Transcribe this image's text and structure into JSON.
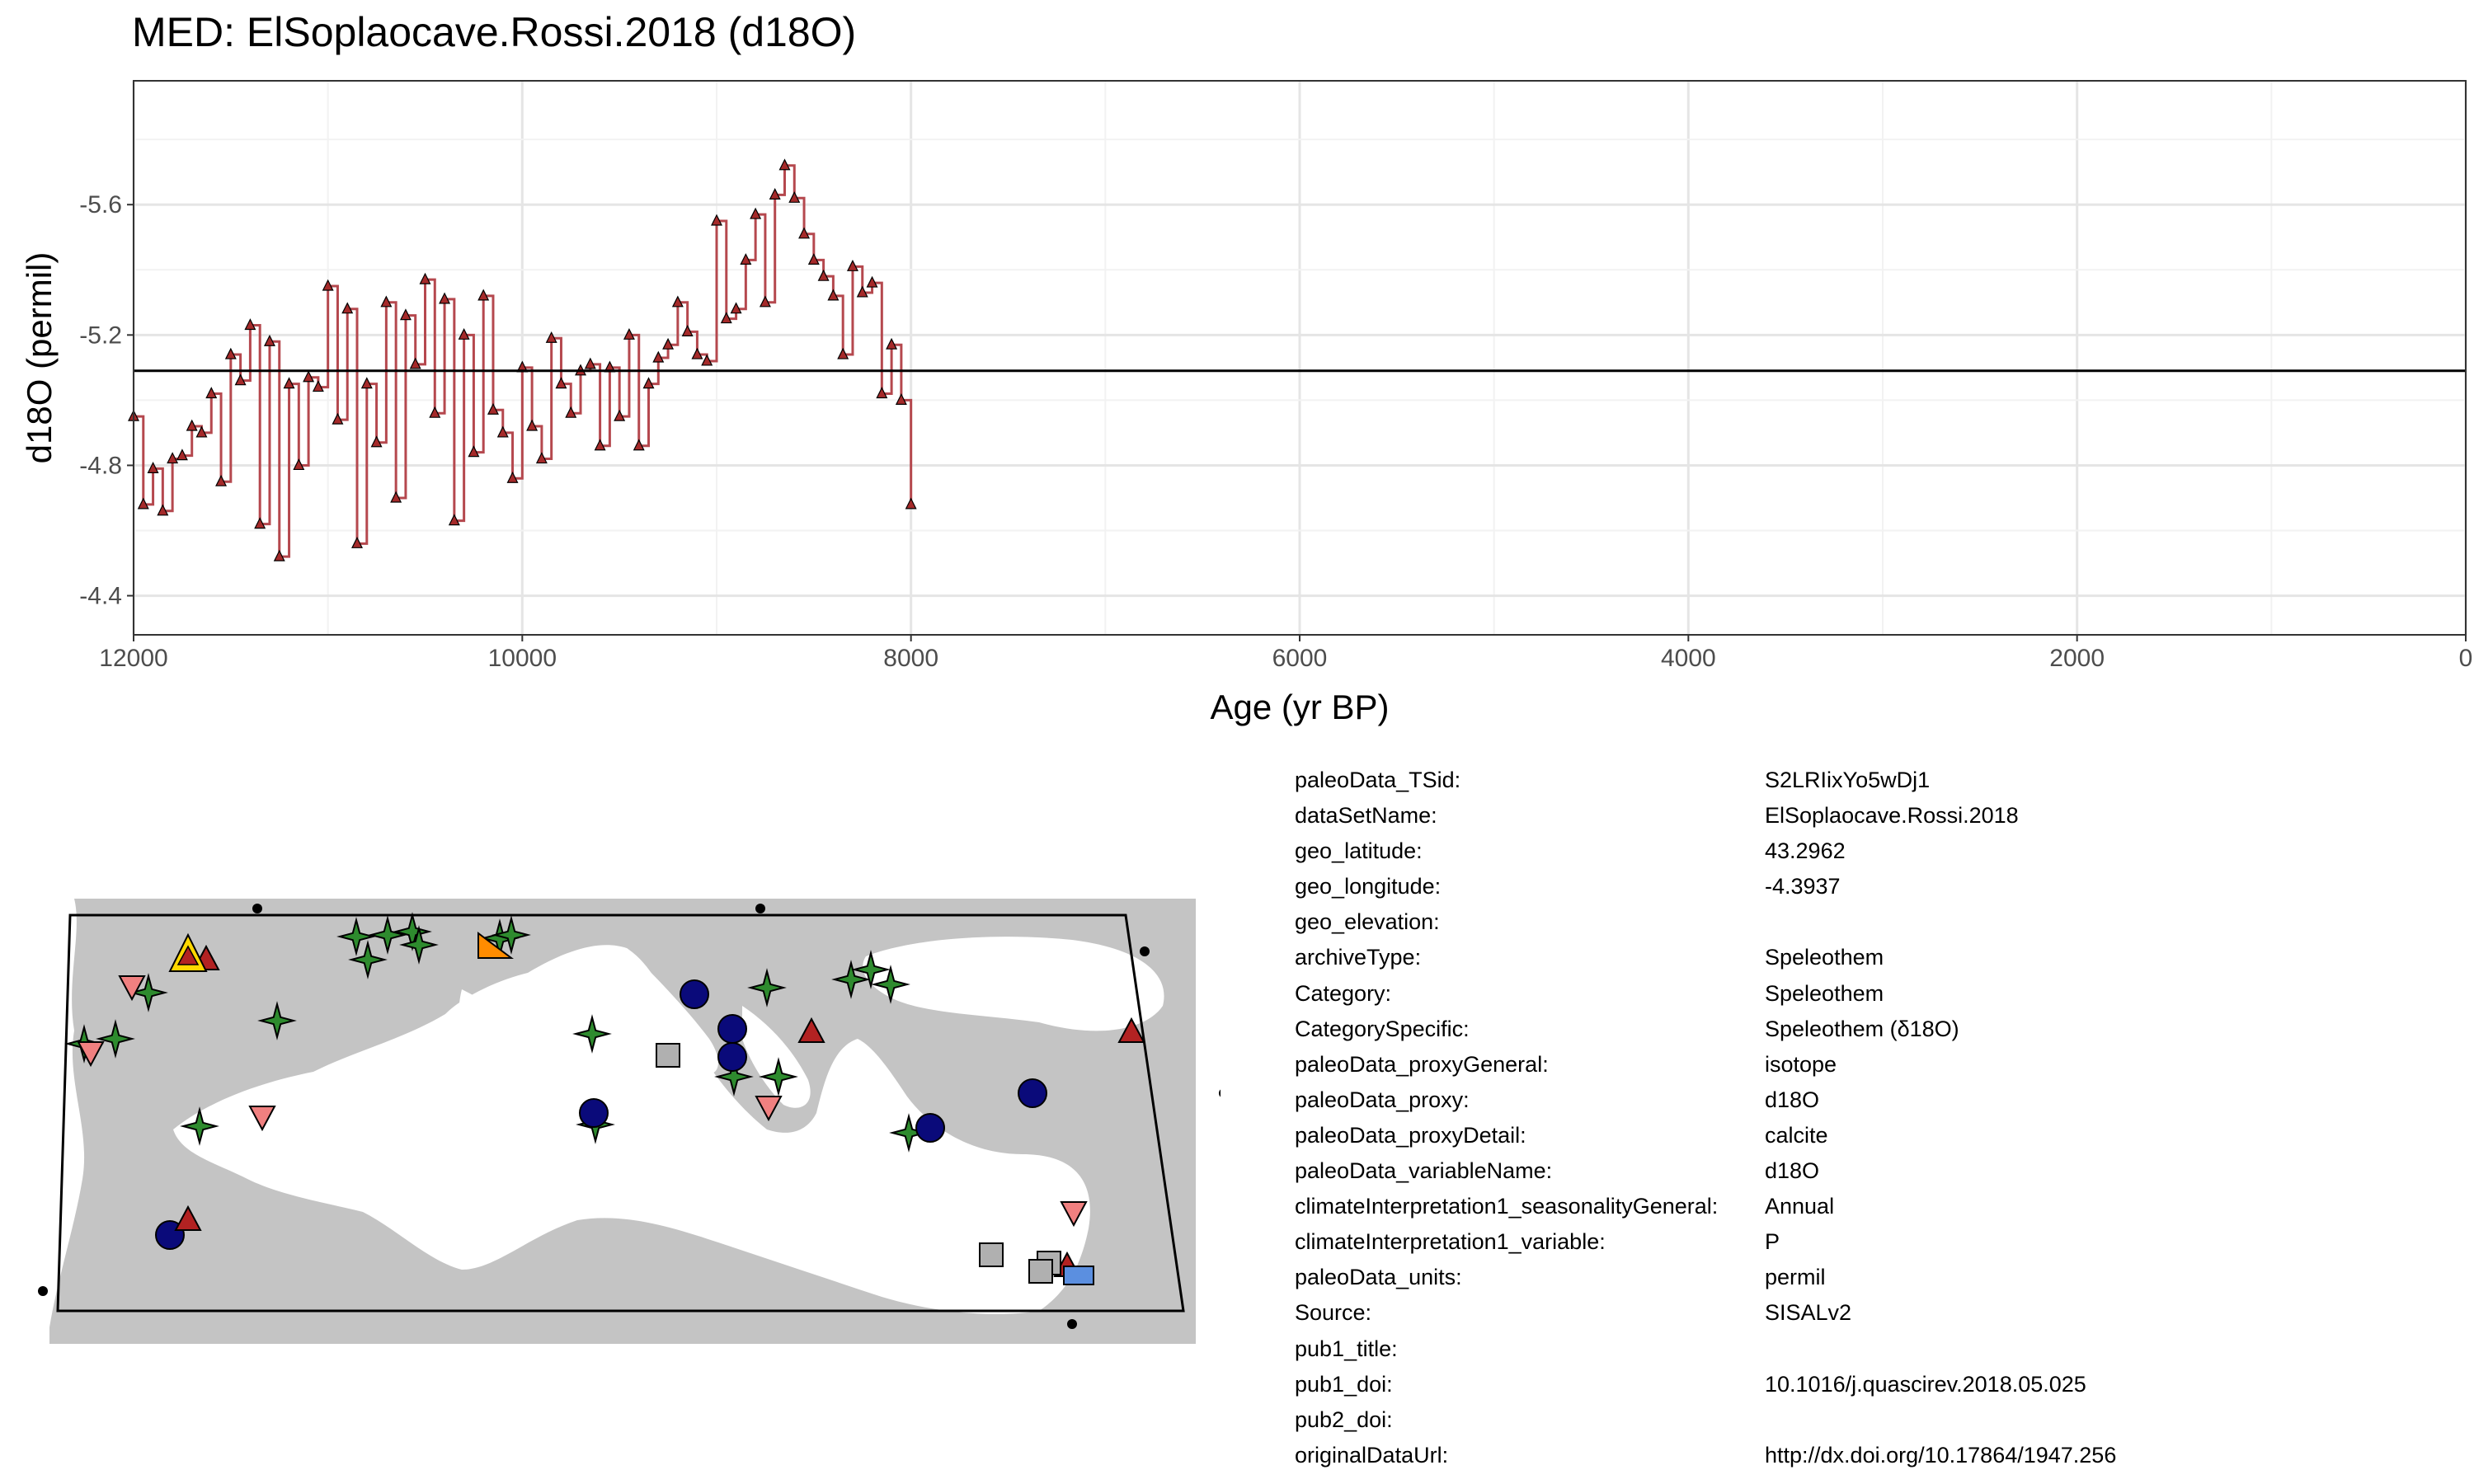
{
  "chart_data": {
    "type": "line",
    "title": "MED: ElSoplaocave.Rossi.2018 (d18O)",
    "xlabel": "Age (yr BP)",
    "ylabel": "d18O (permil)",
    "xlim": [
      12000,
      0
    ],
    "ylim": [
      -4.28,
      -5.98
    ],
    "y_axis_reversed": true,
    "x_ticks": [
      12000,
      10000,
      8000,
      6000,
      4000,
      2000,
      0
    ],
    "y_ticks": [
      -5.6,
      -5.2,
      -4.8,
      -4.4
    ],
    "reference_line_y": -5.09,
    "grid": true,
    "series": [
      {
        "color": "#A52A2A",
        "line_color": "#B5484E",
        "marker": "triangle",
        "x": [
          12000,
          11950,
          11900,
          11850,
          11800,
          11750,
          11700,
          11650,
          11600,
          11550,
          11500,
          11450,
          11400,
          11350,
          11300,
          11250,
          11200,
          11150,
          11100,
          11050,
          11000,
          10950,
          10900,
          10850,
          10800,
          10750,
          10700,
          10650,
          10600,
          10550,
          10500,
          10450,
          10400,
          10350,
          10300,
          10250,
          10200,
          10150,
          10100,
          10050,
          10000,
          9950,
          9900,
          9850,
          9800,
          9750,
          9700,
          9650,
          9600,
          9550,
          9500,
          9450,
          9400,
          9350,
          9300,
          9250,
          9200,
          9150,
          9100,
          9050,
          9000,
          8950,
          8900,
          8850,
          8800,
          8750,
          8700,
          8650,
          8600,
          8550,
          8500,
          8450,
          8400,
          8350,
          8300,
          8250,
          8200,
          8150,
          8100,
          8050,
          8000
        ],
        "y": [
          -4.95,
          -4.68,
          -4.79,
          -4.66,
          -4.82,
          -4.83,
          -4.92,
          -4.9,
          -5.02,
          -4.75,
          -5.14,
          -5.06,
          -5.23,
          -4.62,
          -5.18,
          -4.52,
          -5.05,
          -4.8,
          -5.07,
          -5.04,
          -5.35,
          -4.94,
          -5.28,
          -4.56,
          -5.05,
          -4.87,
          -5.3,
          -4.7,
          -5.26,
          -5.11,
          -5.37,
          -4.96,
          -5.31,
          -4.63,
          -5.2,
          -4.84,
          -5.32,
          -4.97,
          -4.9,
          -4.76,
          -5.1,
          -4.92,
          -4.82,
          -5.19,
          -5.05,
          -4.96,
          -5.09,
          -5.11,
          -4.86,
          -5.1,
          -4.95,
          -5.2,
          -4.86,
          -5.05,
          -5.13,
          -5.17,
          -5.3,
          -5.21,
          -5.14,
          -5.12,
          -5.55,
          -5.25,
          -5.28,
          -5.43,
          -5.57,
          -5.3,
          -5.63,
          -5.72,
          -5.62,
          -5.51,
          -5.43,
          -5.38,
          -5.32,
          -5.14,
          -5.41,
          -5.33,
          -5.36,
          -5.02,
          -5.17,
          -5.0,
          -4.68
        ]
      }
    ]
  },
  "map": {
    "land_color": "#C4C4C4",
    "sea_color": "#FFFFFF",
    "markers": [
      {
        "shape": "star",
        "color": "#2E8B2E"
      },
      {
        "shape": "circle",
        "color": "#0A0A7A"
      },
      {
        "shape": "triangle",
        "color": "#B22222"
      },
      {
        "shape": "triangle-down",
        "color": "#F08080"
      },
      {
        "shape": "square",
        "color": "#B0B0B0"
      },
      {
        "shape": "triangle-highlight",
        "color": "#FFD700"
      },
      {
        "shape": "triangle-corner",
        "color": "#FF8C00"
      },
      {
        "shape": "square",
        "color": "#5B8FE0"
      }
    ]
  },
  "metadata": [
    {
      "key": "paleoData_TSid:",
      "value": "S2LRIixYo5wDj1"
    },
    {
      "key": "dataSetName:",
      "value": "ElSoplaocave.Rossi.2018"
    },
    {
      "key": "geo_latitude:",
      "value": "43.2962"
    },
    {
      "key": "geo_longitude:",
      "value": "-4.3937"
    },
    {
      "key": "geo_elevation:",
      "value": ""
    },
    {
      "key": "archiveType:",
      "value": "Speleothem"
    },
    {
      "key": "Category:",
      "value": "Speleothem"
    },
    {
      "key": "CategorySpecific:",
      "value": "Speleothem (δ18O)"
    },
    {
      "key": "paleoData_proxyGeneral:",
      "value": "isotope"
    },
    {
      "key": "paleoData_proxy:",
      "value": "d18O"
    },
    {
      "key": "paleoData_proxyDetail:",
      "value": "calcite"
    },
    {
      "key": "paleoData_variableName:",
      "value": "d18O"
    },
    {
      "key": "climateInterpretation1_seasonalityGeneral:",
      "value": "Annual"
    },
    {
      "key": "climateInterpretation1_variable:",
      "value": "P"
    },
    {
      "key": "paleoData_units:",
      "value": "permil"
    },
    {
      "key": "Source:",
      "value": "SISALv2"
    },
    {
      "key": "pub1_title:",
      "value": ""
    },
    {
      "key": "pub1_doi:",
      "value": "10.1016/j.quascirev.2018.05.025"
    },
    {
      "key": "pub2_doi:",
      "value": ""
    },
    {
      "key": "originalDataUrl:",
      "value": "http://dx.doi.org/10.17864/1947.256"
    }
  ]
}
